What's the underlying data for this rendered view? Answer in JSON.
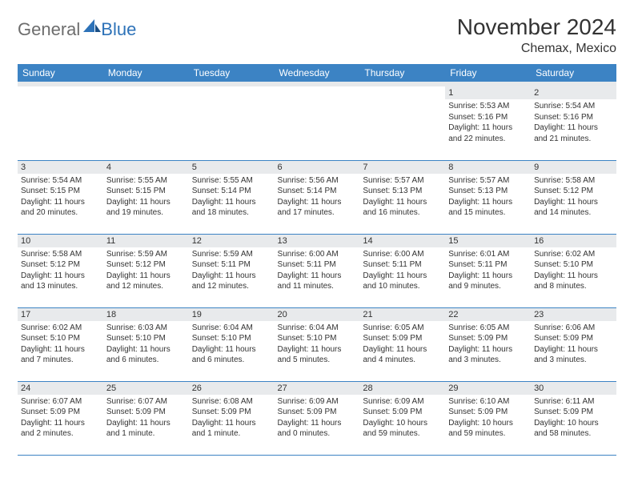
{
  "brand": {
    "part1": "General",
    "part2": "Blue"
  },
  "title": "November 2024",
  "location": "Chemax, Mexico",
  "colors": {
    "header_bg": "#3c83c4",
    "header_text": "#ffffff",
    "daynum_bg": "#e8eaec",
    "divider": "#3c83c4",
    "brand_gray": "#6d6d6d",
    "brand_blue": "#2d72b8",
    "text": "#333333"
  },
  "day_names": [
    "Sunday",
    "Monday",
    "Tuesday",
    "Wednesday",
    "Thursday",
    "Friday",
    "Saturday"
  ],
  "weeks": [
    [
      {
        "n": "",
        "sr": "",
        "ss": "",
        "dl": ""
      },
      {
        "n": "",
        "sr": "",
        "ss": "",
        "dl": ""
      },
      {
        "n": "",
        "sr": "",
        "ss": "",
        "dl": ""
      },
      {
        "n": "",
        "sr": "",
        "ss": "",
        "dl": ""
      },
      {
        "n": "",
        "sr": "",
        "ss": "",
        "dl": ""
      },
      {
        "n": "1",
        "sr": "Sunrise: 5:53 AM",
        "ss": "Sunset: 5:16 PM",
        "dl": "Daylight: 11 hours and 22 minutes."
      },
      {
        "n": "2",
        "sr": "Sunrise: 5:54 AM",
        "ss": "Sunset: 5:16 PM",
        "dl": "Daylight: 11 hours and 21 minutes."
      }
    ],
    [
      {
        "n": "3",
        "sr": "Sunrise: 5:54 AM",
        "ss": "Sunset: 5:15 PM",
        "dl": "Daylight: 11 hours and 20 minutes."
      },
      {
        "n": "4",
        "sr": "Sunrise: 5:55 AM",
        "ss": "Sunset: 5:15 PM",
        "dl": "Daylight: 11 hours and 19 minutes."
      },
      {
        "n": "5",
        "sr": "Sunrise: 5:55 AM",
        "ss": "Sunset: 5:14 PM",
        "dl": "Daylight: 11 hours and 18 minutes."
      },
      {
        "n": "6",
        "sr": "Sunrise: 5:56 AM",
        "ss": "Sunset: 5:14 PM",
        "dl": "Daylight: 11 hours and 17 minutes."
      },
      {
        "n": "7",
        "sr": "Sunrise: 5:57 AM",
        "ss": "Sunset: 5:13 PM",
        "dl": "Daylight: 11 hours and 16 minutes."
      },
      {
        "n": "8",
        "sr": "Sunrise: 5:57 AM",
        "ss": "Sunset: 5:13 PM",
        "dl": "Daylight: 11 hours and 15 minutes."
      },
      {
        "n": "9",
        "sr": "Sunrise: 5:58 AM",
        "ss": "Sunset: 5:12 PM",
        "dl": "Daylight: 11 hours and 14 minutes."
      }
    ],
    [
      {
        "n": "10",
        "sr": "Sunrise: 5:58 AM",
        "ss": "Sunset: 5:12 PM",
        "dl": "Daylight: 11 hours and 13 minutes."
      },
      {
        "n": "11",
        "sr": "Sunrise: 5:59 AM",
        "ss": "Sunset: 5:12 PM",
        "dl": "Daylight: 11 hours and 12 minutes."
      },
      {
        "n": "12",
        "sr": "Sunrise: 5:59 AM",
        "ss": "Sunset: 5:11 PM",
        "dl": "Daylight: 11 hours and 12 minutes."
      },
      {
        "n": "13",
        "sr": "Sunrise: 6:00 AM",
        "ss": "Sunset: 5:11 PM",
        "dl": "Daylight: 11 hours and 11 minutes."
      },
      {
        "n": "14",
        "sr": "Sunrise: 6:00 AM",
        "ss": "Sunset: 5:11 PM",
        "dl": "Daylight: 11 hours and 10 minutes."
      },
      {
        "n": "15",
        "sr": "Sunrise: 6:01 AM",
        "ss": "Sunset: 5:11 PM",
        "dl": "Daylight: 11 hours and 9 minutes."
      },
      {
        "n": "16",
        "sr": "Sunrise: 6:02 AM",
        "ss": "Sunset: 5:10 PM",
        "dl": "Daylight: 11 hours and 8 minutes."
      }
    ],
    [
      {
        "n": "17",
        "sr": "Sunrise: 6:02 AM",
        "ss": "Sunset: 5:10 PM",
        "dl": "Daylight: 11 hours and 7 minutes."
      },
      {
        "n": "18",
        "sr": "Sunrise: 6:03 AM",
        "ss": "Sunset: 5:10 PM",
        "dl": "Daylight: 11 hours and 6 minutes."
      },
      {
        "n": "19",
        "sr": "Sunrise: 6:04 AM",
        "ss": "Sunset: 5:10 PM",
        "dl": "Daylight: 11 hours and 6 minutes."
      },
      {
        "n": "20",
        "sr": "Sunrise: 6:04 AM",
        "ss": "Sunset: 5:10 PM",
        "dl": "Daylight: 11 hours and 5 minutes."
      },
      {
        "n": "21",
        "sr": "Sunrise: 6:05 AM",
        "ss": "Sunset: 5:09 PM",
        "dl": "Daylight: 11 hours and 4 minutes."
      },
      {
        "n": "22",
        "sr": "Sunrise: 6:05 AM",
        "ss": "Sunset: 5:09 PM",
        "dl": "Daylight: 11 hours and 3 minutes."
      },
      {
        "n": "23",
        "sr": "Sunrise: 6:06 AM",
        "ss": "Sunset: 5:09 PM",
        "dl": "Daylight: 11 hours and 3 minutes."
      }
    ],
    [
      {
        "n": "24",
        "sr": "Sunrise: 6:07 AM",
        "ss": "Sunset: 5:09 PM",
        "dl": "Daylight: 11 hours and 2 minutes."
      },
      {
        "n": "25",
        "sr": "Sunrise: 6:07 AM",
        "ss": "Sunset: 5:09 PM",
        "dl": "Daylight: 11 hours and 1 minute."
      },
      {
        "n": "26",
        "sr": "Sunrise: 6:08 AM",
        "ss": "Sunset: 5:09 PM",
        "dl": "Daylight: 11 hours and 1 minute."
      },
      {
        "n": "27",
        "sr": "Sunrise: 6:09 AM",
        "ss": "Sunset: 5:09 PM",
        "dl": "Daylight: 11 hours and 0 minutes."
      },
      {
        "n": "28",
        "sr": "Sunrise: 6:09 AM",
        "ss": "Sunset: 5:09 PM",
        "dl": "Daylight: 10 hours and 59 minutes."
      },
      {
        "n": "29",
        "sr": "Sunrise: 6:10 AM",
        "ss": "Sunset: 5:09 PM",
        "dl": "Daylight: 10 hours and 59 minutes."
      },
      {
        "n": "30",
        "sr": "Sunrise: 6:11 AM",
        "ss": "Sunset: 5:09 PM",
        "dl": "Daylight: 10 hours and 58 minutes."
      }
    ]
  ]
}
